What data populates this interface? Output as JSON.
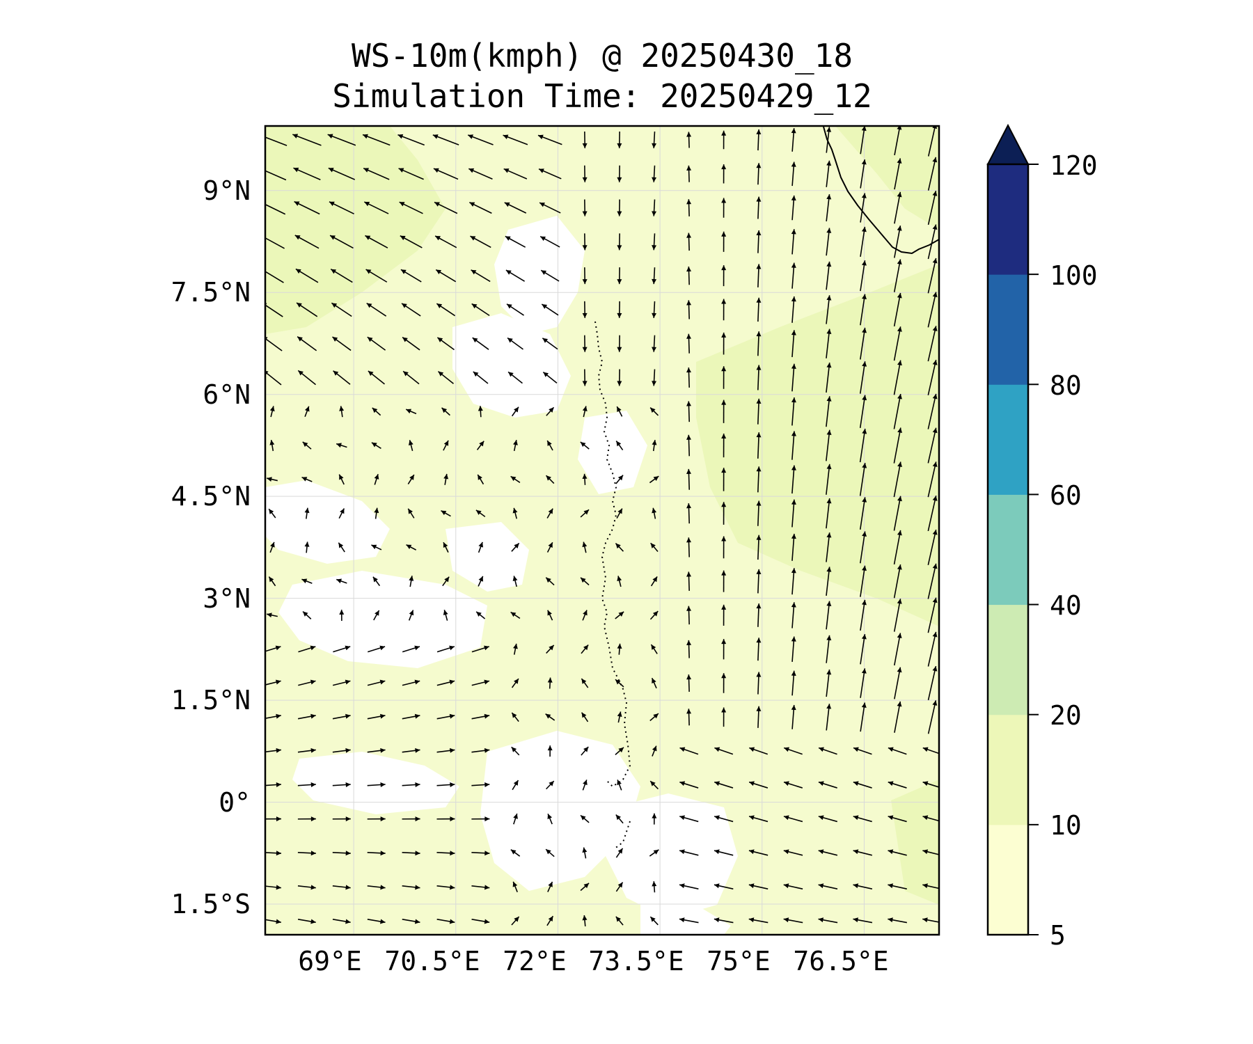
{
  "title": {
    "line1": "WS-10m(kmph) @ 20250430_18",
    "line2": "Simulation Time: 20250429_12"
  },
  "map": {
    "lon_range": [
      67.7,
      77.6
    ],
    "lat_range": [
      -1.95,
      9.95
    ],
    "lon_ticks": [
      69,
      70.5,
      72,
      73.5,
      75,
      76.5
    ],
    "lon_tick_labels": [
      "69°E",
      "70.5°E",
      "72°E",
      "73.5°E",
      "75°E",
      "76.5°E"
    ],
    "lat_ticks": [
      9,
      7.5,
      6,
      4.5,
      3,
      1.5,
      0,
      -1.5
    ],
    "lat_tick_labels": [
      "9°N",
      "7.5°N",
      "6°N",
      "4.5°N",
      "3°N",
      "1.5°N",
      "0°",
      "1.5°S"
    ],
    "background_color": "#f5fbce",
    "calm_color": "#ffffff",
    "band_10_20_color": "#ebf7b9",
    "coastline_color": "#000000"
  },
  "colorbar": {
    "levels": [
      5,
      10,
      20,
      40,
      60,
      80,
      100,
      120
    ],
    "labels": [
      "5",
      "10",
      "20",
      "40",
      "60",
      "80",
      "100",
      "120"
    ],
    "colors": [
      "#fcfed2",
      "#edf7b8",
      "#cdebb3",
      "#7ccbbb",
      "#2fa2c4",
      "#2263a8",
      "#1e2c7f"
    ],
    "extend_color": "#0c1f55",
    "extend": "max"
  }
}
